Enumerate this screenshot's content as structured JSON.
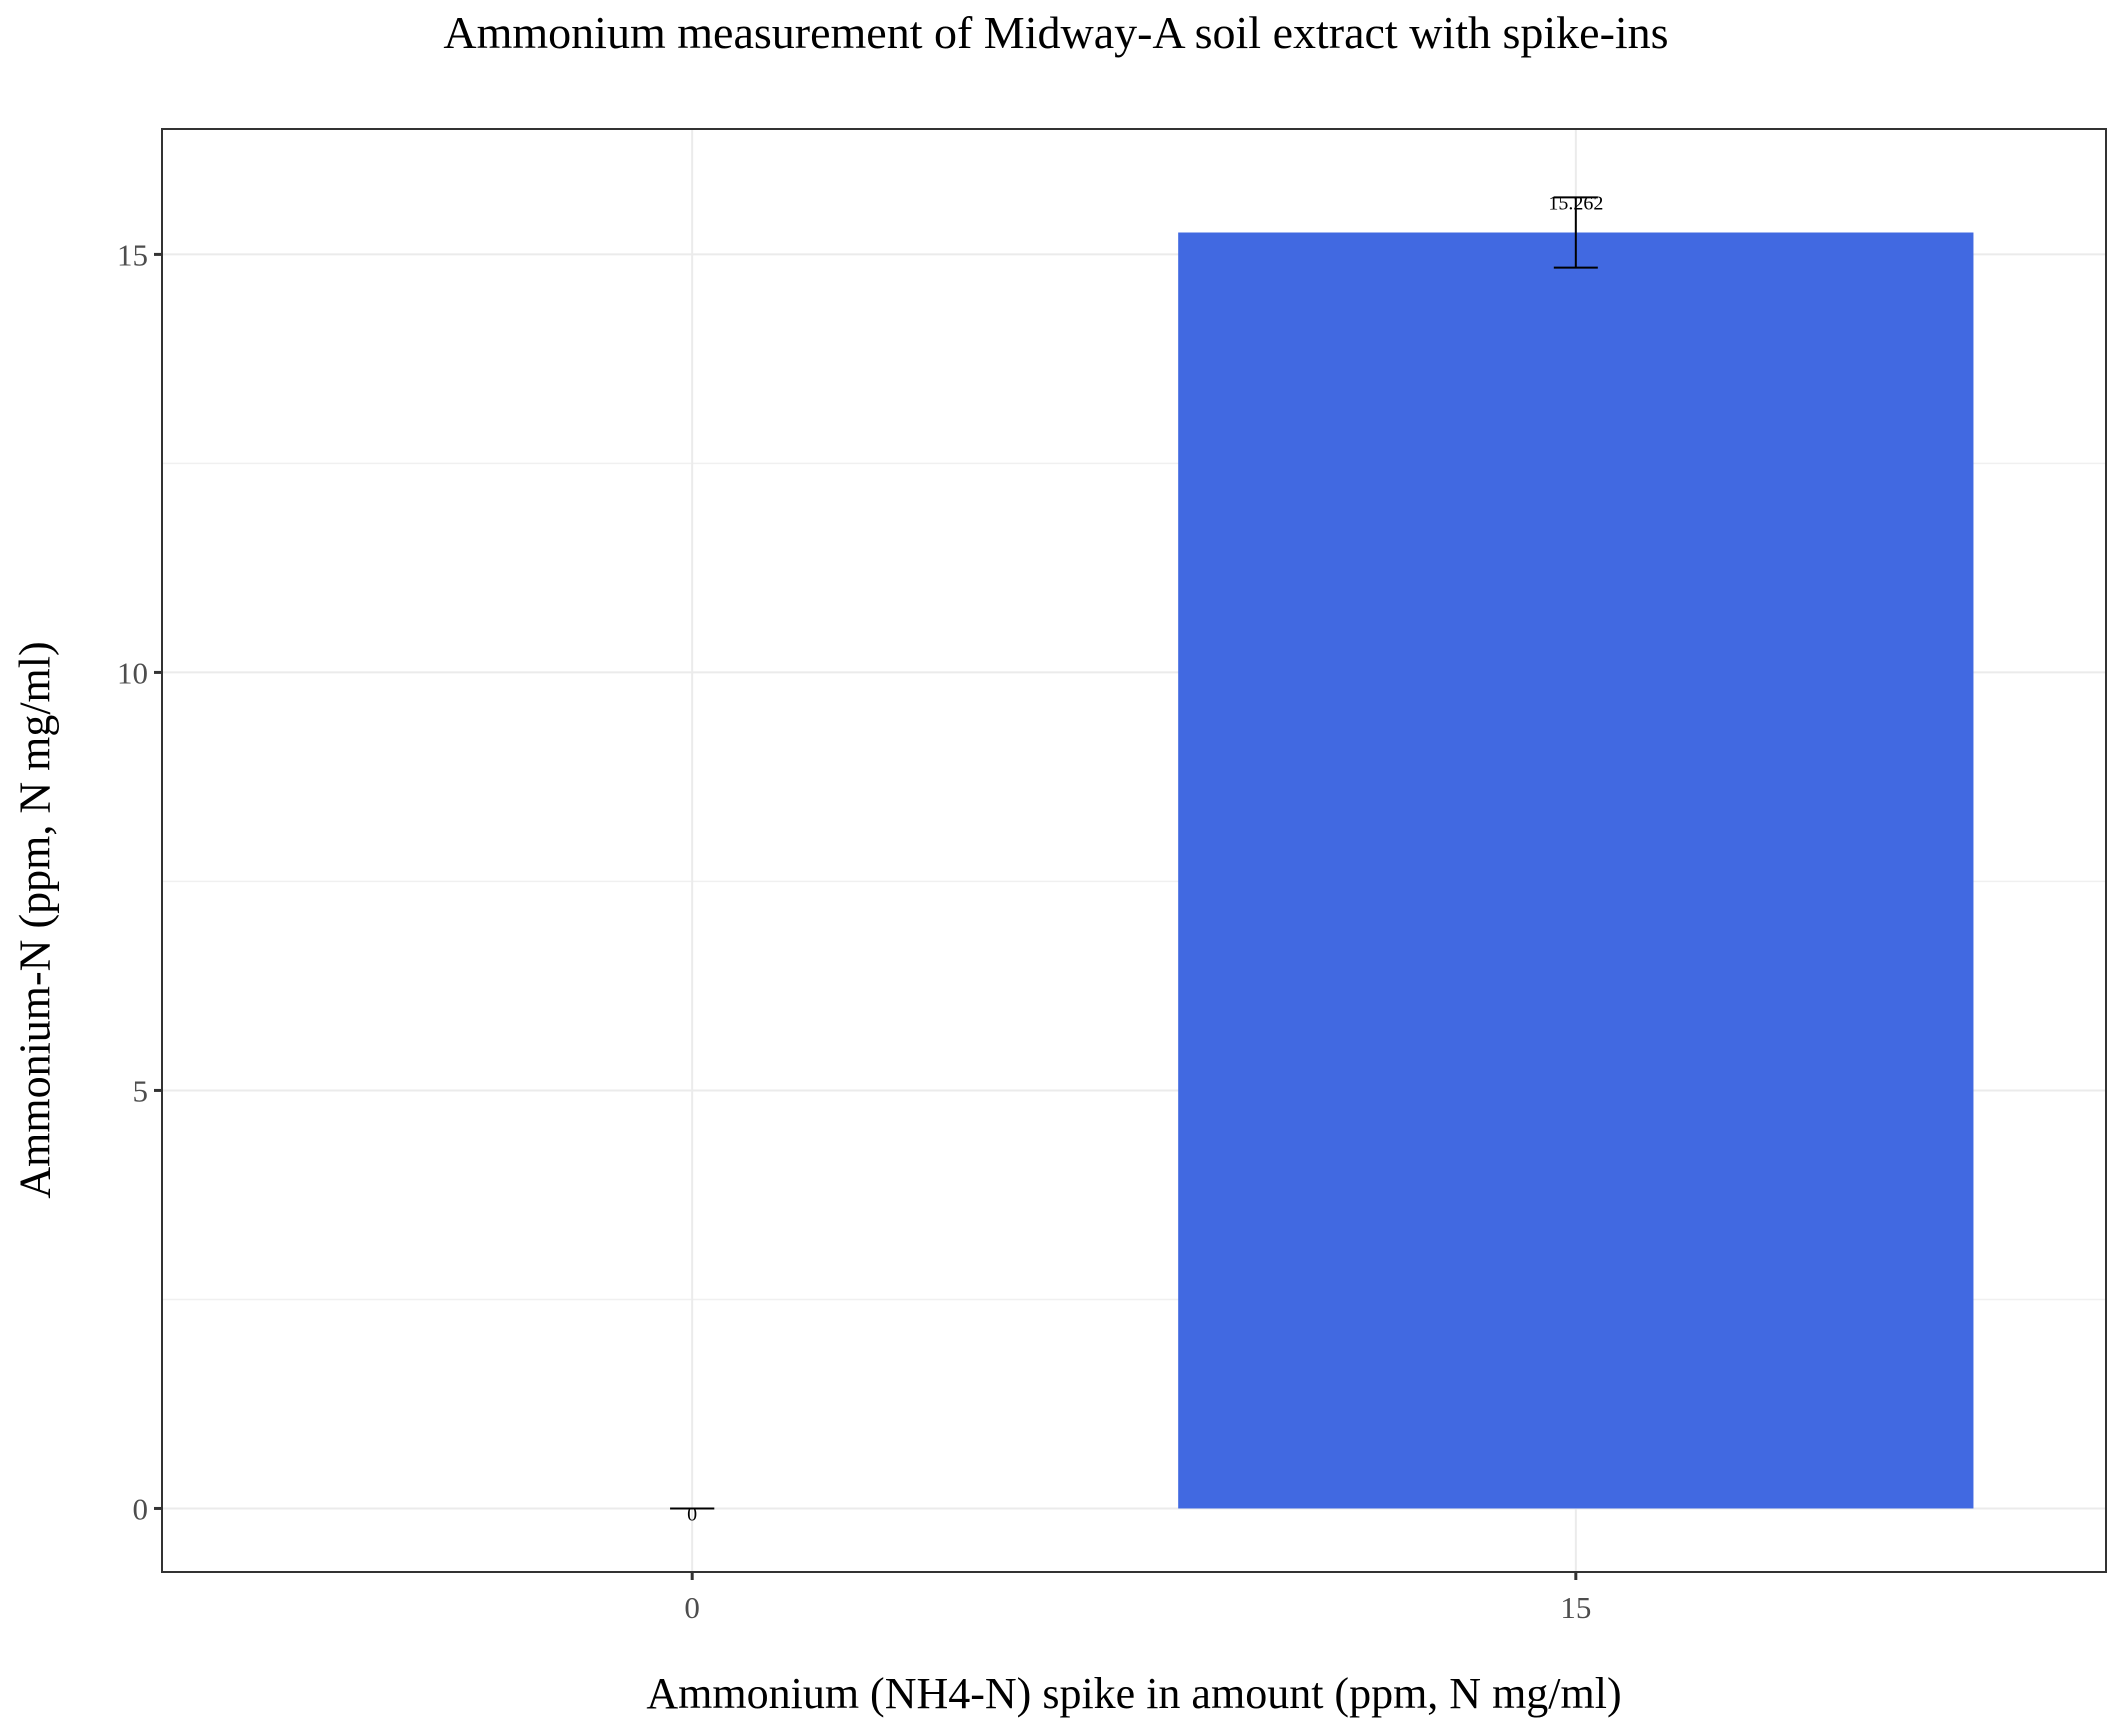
{
  "chart_data": {
    "type": "bar",
    "title": "Ammonium measurement of Midway-A soil extract with spike-ins",
    "xlabel": "Ammonium (NH4-N) spike in amount (ppm, N mg/ml)",
    "ylabel": "Ammonium-N (ppm, N mg/ml)",
    "categories": [
      "0",
      "15"
    ],
    "values": [
      0,
      15.262
    ],
    "error_low": [
      0,
      14.842
    ],
    "error_high": [
      0,
      15.682
    ],
    "value_labels": [
      "0",
      "15.262"
    ],
    "yticks": [
      "0",
      "5",
      "10",
      "15"
    ],
    "ylim": [
      -0.76,
      16.5
    ],
    "grid": true,
    "bar_color": "#4169e1"
  }
}
